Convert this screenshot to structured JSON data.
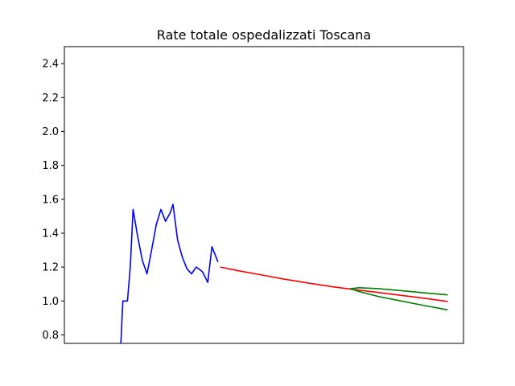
{
  "chart_data": {
    "type": "line",
    "title": "Rate totale ospedalizzati Toscana",
    "xlabel": "",
    "ylabel": "",
    "ylim": [
      0.75,
      2.5
    ],
    "xlim": [
      -12.6,
      73.4
    ],
    "yticks": [
      0.8,
      1.0,
      1.2,
      1.4,
      1.6,
      1.8,
      2.0,
      2.2,
      2.4
    ],
    "ytick_labels": [
      "0.8",
      "1.0",
      "1.2",
      "1.4",
      "1.6",
      "1.8",
      "2.0",
      "2.2",
      "2.4"
    ],
    "grid": false,
    "legend": false,
    "colors": {
      "observed": "#0000ff",
      "projection": "#ff0000",
      "bounds": "#008000"
    },
    "series": [
      {
        "color": "#0000ff",
        "x": [
          -0.5,
          0,
          1,
          1.6,
          2.2,
          3.2,
          4.2,
          5.2,
          6.2,
          7.2,
          8.2,
          9.2,
          10.2,
          10.8,
          11.8,
          12.8,
          13.8,
          14.8,
          15.8,
          16.8,
          17.2,
          18.3,
          19.2,
          20.5
        ],
        "y": [
          0.71,
          1.0,
          1.0,
          1.2,
          1.54,
          1.38,
          1.24,
          1.16,
          1.3,
          1.45,
          1.54,
          1.47,
          1.52,
          1.57,
          1.36,
          1.26,
          1.19,
          1.16,
          1.2,
          1.18,
          1.17,
          1.11,
          1.32,
          1.23
        ]
      },
      {
        "color": "#ff0000",
        "x": [
          21,
          25,
          30,
          35,
          40,
          45,
          50,
          55,
          60,
          65,
          70
        ],
        "y": [
          1.2,
          1.178,
          1.153,
          1.128,
          1.105,
          1.085,
          1.067,
          1.05,
          1.033,
          1.016,
          0.997
        ]
      },
      {
        "color": "#008000",
        "x": [
          49,
          51,
          55,
          60,
          65,
          70
        ],
        "y": [
          1.073,
          1.078,
          1.073,
          1.061,
          1.048,
          1.036
        ]
      },
      {
        "color": "#008000",
        "x": [
          49,
          51,
          55,
          60,
          65,
          70
        ],
        "y": [
          1.073,
          1.055,
          1.027,
          1.0,
          0.973,
          0.948
        ]
      }
    ]
  }
}
